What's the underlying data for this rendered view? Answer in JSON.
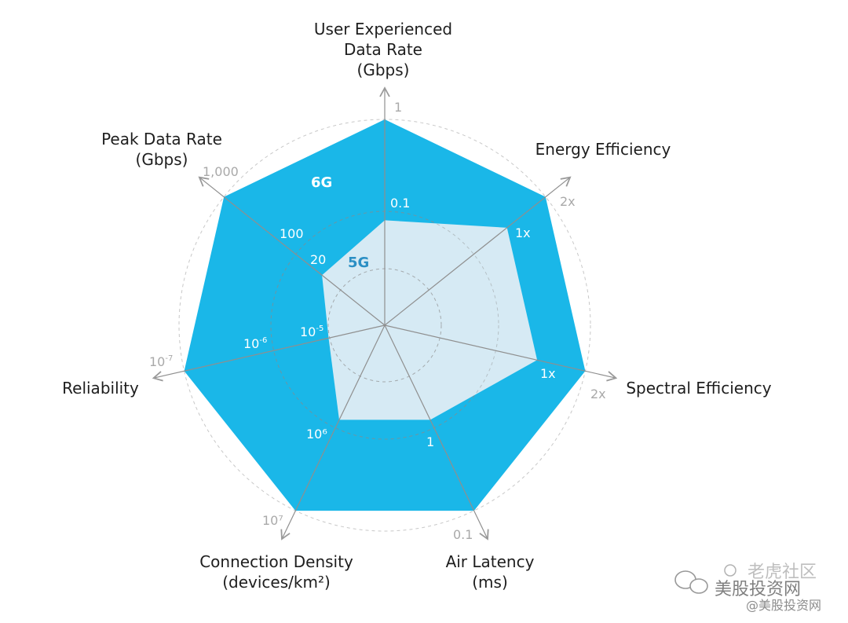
{
  "chart_data": {
    "type": "radar",
    "title": "",
    "axes": [
      {
        "name": "user-experienced-data-rate",
        "label": [
          "User Experienced",
          "Data Rate",
          "(Gbps)"
        ],
        "ticks": {
          "5g": "0.1",
          "6g": "1"
        }
      },
      {
        "name": "energy-efficiency",
        "label": [
          "Energy Efficiency"
        ],
        "ticks": {
          "5g": "1x",
          "6g": "2x"
        }
      },
      {
        "name": "spectral-efficiency",
        "label": [
          "Spectral Efficiency"
        ],
        "ticks": {
          "5g": "1x",
          "6g": "2x"
        }
      },
      {
        "name": "air-latency",
        "label": [
          "Air Latency",
          "(ms)"
        ],
        "ticks": {
          "5g": "1",
          "6g": "0.1"
        }
      },
      {
        "name": "connection-density",
        "label": [
          "Connection Density",
          "(devices/km²)"
        ],
        "ticks": {
          "5g": "10⁶",
          "6g": "10⁷"
        }
      },
      {
        "name": "reliability",
        "label": [
          "Reliability"
        ],
        "ticks": {
          "5g_base": "10",
          "5g_exp": "-5",
          "mid_base": "10",
          "mid_exp": "-6",
          "6g_base": "10",
          "6g_exp": "-7"
        }
      },
      {
        "name": "peak-data-rate",
        "label": [
          "Peak Data Rate",
          "(Gbps)"
        ],
        "ticks": {
          "5g": "20",
          "mid": "100",
          "6g": "1,000"
        }
      }
    ],
    "series": [
      {
        "name": "6G",
        "color": "#1ab7e8",
        "values": [
          1.0,
          1.0,
          1.0,
          1.0,
          1.0,
          1.0,
          1.0
        ]
      },
      {
        "name": "5G",
        "color": "#d6eaf4",
        "values": [
          0.51,
          0.76,
          0.76,
          0.51,
          0.51,
          0.28,
          0.39
        ]
      }
    ],
    "series_labels": {
      "6g": "6G",
      "5g": "5G"
    },
    "label_colors": {
      "6g": "#ffffff",
      "5g": "#2b8fc4"
    },
    "gridline_color": "#bdbdbd",
    "axis_line_color": "#8f8f8f"
  },
  "watermark": {
    "line1": "老虎社区",
    "line2": "美股投资网",
    "line3": "@美股投资网"
  }
}
